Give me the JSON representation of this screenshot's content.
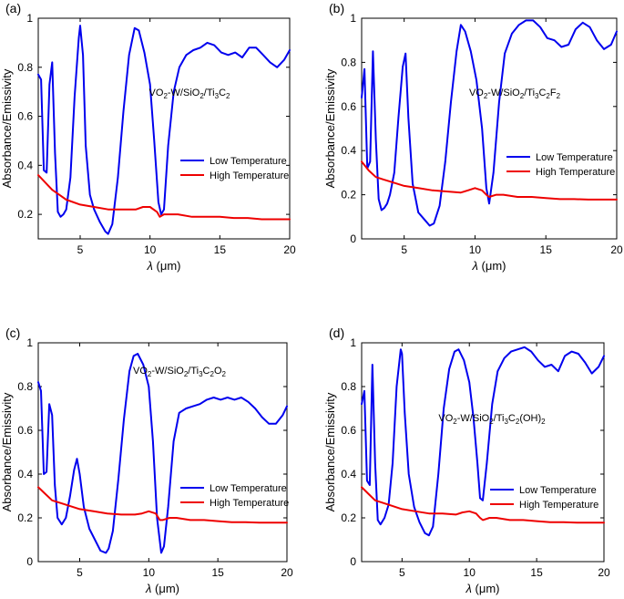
{
  "legend": {
    "low": "Low Temperature",
    "high": "High Temperature"
  },
  "colors": {
    "low": "#0000ee",
    "high": "#ee0000",
    "axis": "#000000"
  },
  "chart_data": [
    {
      "type": "line",
      "panel_label": "(a)",
      "annotation": {
        "prefix": "VO",
        "parts": [
          [
            "2",
            "sub"
          ],
          [
            "-W/SiO",
            "n"
          ],
          [
            "2",
            "sub"
          ],
          [
            "/Ti",
            "n"
          ],
          [
            "3",
            "sub"
          ],
          [
            "C",
            "n"
          ],
          [
            "2",
            "sub"
          ]
        ]
      },
      "xlabel_symbol": "λ",
      "xlabel_unit": "(μm)",
      "ylabel": "Absorbance/Emissivity",
      "xlim": [
        2,
        20
      ],
      "ylim": [
        0.1,
        1.0
      ],
      "xticks": [
        5,
        10,
        15,
        20
      ],
      "yticks": [
        0.2,
        0.4,
        0.6,
        0.8,
        1.0
      ],
      "ytick_labels": [
        "0.2",
        "0.4",
        "0.6",
        "0.8",
        "1"
      ],
      "legend_position": "center-right",
      "series": [
        {
          "name": "Low Temperature",
          "x": [
            2,
            2.2,
            2.4,
            2.6,
            2.8,
            3.0,
            3.2,
            3.4,
            3.6,
            3.8,
            4.0,
            4.3,
            4.6,
            4.9,
            5.0,
            5.2,
            5.4,
            5.7,
            6.0,
            6.4,
            6.8,
            7.0,
            7.3,
            7.7,
            8.1,
            8.5,
            8.9,
            9.2,
            9.6,
            10.0,
            10.3,
            10.6,
            10.8,
            11.0,
            11.3,
            11.7,
            12.1,
            12.6,
            13.1,
            13.6,
            14.1,
            14.6,
            15.1,
            15.6,
            16.1,
            16.6,
            17.1,
            17.6,
            18.1,
            18.6,
            19.1,
            19.6,
            20
          ],
          "y": [
            0.77,
            0.75,
            0.38,
            0.37,
            0.73,
            0.82,
            0.45,
            0.21,
            0.19,
            0.2,
            0.22,
            0.35,
            0.68,
            0.92,
            0.97,
            0.85,
            0.48,
            0.28,
            0.22,
            0.17,
            0.13,
            0.12,
            0.16,
            0.35,
            0.62,
            0.85,
            0.96,
            0.95,
            0.86,
            0.73,
            0.5,
            0.25,
            0.2,
            0.22,
            0.48,
            0.7,
            0.8,
            0.85,
            0.87,
            0.88,
            0.9,
            0.89,
            0.86,
            0.85,
            0.86,
            0.84,
            0.88,
            0.88,
            0.85,
            0.82,
            0.8,
            0.83,
            0.87
          ]
        },
        {
          "name": "High Temperature",
          "x": [
            2,
            2.5,
            3,
            3.5,
            4,
            5,
            6,
            7,
            8,
            9,
            9.5,
            10,
            10.5,
            10.7,
            11,
            11.5,
            12,
            13,
            14,
            15,
            16,
            17,
            18,
            19,
            20
          ],
          "y": [
            0.36,
            0.33,
            0.3,
            0.28,
            0.26,
            0.24,
            0.23,
            0.22,
            0.22,
            0.22,
            0.23,
            0.23,
            0.21,
            0.19,
            0.2,
            0.2,
            0.2,
            0.19,
            0.19,
            0.19,
            0.185,
            0.185,
            0.18,
            0.18,
            0.18
          ]
        }
      ]
    },
    {
      "type": "line",
      "panel_label": "(b)",
      "annotation": {
        "prefix": "VO",
        "parts": [
          [
            "2",
            "sub"
          ],
          [
            "-W/SiO",
            "n"
          ],
          [
            "2",
            "sub"
          ],
          [
            "/Ti",
            "n"
          ],
          [
            "3",
            "sub"
          ],
          [
            "C",
            "n"
          ],
          [
            "2",
            "sub"
          ],
          [
            "F",
            "n"
          ],
          [
            "2",
            "sub"
          ]
        ]
      },
      "xlabel_symbol": "λ",
      "xlabel_unit": "(μm)",
      "ylabel": "Absorbance/Emissivity",
      "xlim": [
        2,
        20
      ],
      "ylim": [
        0,
        1.0
      ],
      "xticks": [
        5,
        10,
        15,
        20
      ],
      "yticks": [
        0,
        0.2,
        0.4,
        0.6,
        0.8,
        1.0
      ],
      "ytick_labels": [
        "0",
        "0.2",
        "0.4",
        "0.6",
        "0.8",
        "1"
      ],
      "legend_position": "center-right",
      "series": [
        {
          "name": "Low Temperature",
          "x": [
            2,
            2.2,
            2.4,
            2.6,
            2.8,
            3.0,
            3.2,
            3.4,
            3.6,
            3.8,
            4.0,
            4.3,
            4.6,
            4.9,
            5.1,
            5.3,
            5.6,
            6.0,
            6.4,
            6.8,
            7.1,
            7.5,
            7.9,
            8.3,
            8.7,
            9.0,
            9.3,
            9.7,
            10.1,
            10.5,
            10.8,
            11.0,
            11.3,
            11.7,
            12.1,
            12.6,
            13.1,
            13.6,
            14.1,
            14.6,
            15.1,
            15.6,
            16.1,
            16.6,
            17.1,
            17.6,
            18.1,
            18.6,
            19.1,
            19.6,
            20
          ],
          "y": [
            0.64,
            0.77,
            0.32,
            0.35,
            0.85,
            0.45,
            0.18,
            0.13,
            0.14,
            0.16,
            0.2,
            0.3,
            0.55,
            0.78,
            0.84,
            0.55,
            0.25,
            0.12,
            0.09,
            0.06,
            0.07,
            0.15,
            0.35,
            0.62,
            0.85,
            0.97,
            0.94,
            0.85,
            0.72,
            0.5,
            0.23,
            0.16,
            0.3,
            0.62,
            0.84,
            0.93,
            0.97,
            0.99,
            0.99,
            0.96,
            0.91,
            0.9,
            0.87,
            0.88,
            0.95,
            0.98,
            0.96,
            0.9,
            0.86,
            0.88,
            0.94
          ]
        },
        {
          "name": "High Temperature",
          "x": [
            2,
            2.5,
            3,
            3.5,
            4,
            5,
            6,
            7,
            8,
            9,
            9.5,
            10,
            10.5,
            10.8,
            11,
            11.5,
            12,
            13,
            14,
            15,
            16,
            17,
            18,
            19,
            20
          ],
          "y": [
            0.35,
            0.31,
            0.28,
            0.27,
            0.26,
            0.24,
            0.23,
            0.22,
            0.215,
            0.21,
            0.22,
            0.23,
            0.22,
            0.2,
            0.19,
            0.2,
            0.2,
            0.19,
            0.19,
            0.185,
            0.18,
            0.18,
            0.178,
            0.178,
            0.178
          ]
        }
      ]
    },
    {
      "type": "line",
      "panel_label": "(c)",
      "annotation": {
        "prefix": "VO",
        "parts": [
          [
            "2",
            "sub"
          ],
          [
            "-W/SiO",
            "n"
          ],
          [
            "2",
            "sub"
          ],
          [
            "/Ti",
            "n"
          ],
          [
            "3",
            "sub"
          ],
          [
            "C",
            "n"
          ],
          [
            "2",
            "sub"
          ],
          [
            "O",
            "n"
          ],
          [
            "2",
            "sub"
          ]
        ]
      },
      "xlabel_symbol": "λ",
      "xlabel_unit": "(μm)",
      "ylabel": "Absorbance/Emissivity",
      "xlim": [
        2,
        20
      ],
      "ylim": [
        0,
        1.0
      ],
      "xticks": [
        5,
        10,
        15,
        20
      ],
      "yticks": [
        0,
        0.2,
        0.4,
        0.6,
        0.8,
        1.0
      ],
      "ytick_labels": [
        "0",
        "0.2",
        "0.4",
        "0.6",
        "0.8",
        "1"
      ],
      "legend_position": "center-right",
      "series": [
        {
          "name": "Low Temperature",
          "x": [
            2,
            2.2,
            2.4,
            2.6,
            2.8,
            3.0,
            3.2,
            3.4,
            3.7,
            4.0,
            4.3,
            4.6,
            4.8,
            5.0,
            5.3,
            5.7,
            6.1,
            6.5,
            6.9,
            7.1,
            7.4,
            7.8,
            8.2,
            8.6,
            8.9,
            9.2,
            9.6,
            10.0,
            10.3,
            10.6,
            10.9,
            11.1,
            11.4,
            11.8,
            12.2,
            12.7,
            13.2,
            13.7,
            14.2,
            14.7,
            15.2,
            15.7,
            16.2,
            16.7,
            17.2,
            17.7,
            18.2,
            18.7,
            19.2,
            19.7,
            20
          ],
          "y": [
            0.82,
            0.78,
            0.4,
            0.41,
            0.72,
            0.67,
            0.35,
            0.2,
            0.17,
            0.2,
            0.3,
            0.42,
            0.47,
            0.4,
            0.25,
            0.15,
            0.1,
            0.05,
            0.04,
            0.06,
            0.14,
            0.38,
            0.65,
            0.87,
            0.94,
            0.95,
            0.9,
            0.8,
            0.55,
            0.2,
            0.04,
            0.07,
            0.25,
            0.55,
            0.68,
            0.7,
            0.71,
            0.72,
            0.74,
            0.75,
            0.74,
            0.75,
            0.74,
            0.75,
            0.73,
            0.7,
            0.66,
            0.63,
            0.63,
            0.67,
            0.71
          ]
        },
        {
          "name": "High Temperature",
          "x": [
            2,
            2.5,
            3,
            3.5,
            4,
            5,
            6,
            7,
            8,
            9,
            9.5,
            10,
            10.5,
            10.8,
            11,
            11.5,
            12,
            13,
            14,
            15,
            16,
            17,
            18,
            19,
            20
          ],
          "y": [
            0.34,
            0.31,
            0.28,
            0.27,
            0.26,
            0.24,
            0.23,
            0.22,
            0.215,
            0.215,
            0.22,
            0.23,
            0.22,
            0.19,
            0.19,
            0.2,
            0.2,
            0.19,
            0.19,
            0.185,
            0.18,
            0.18,
            0.178,
            0.178,
            0.178
          ]
        }
      ]
    },
    {
      "type": "line",
      "panel_label": "(d)",
      "annotation": {
        "prefix": "VO",
        "parts": [
          [
            "2",
            "sub"
          ],
          [
            "-W/SiO",
            "n"
          ],
          [
            "2",
            "sub"
          ],
          [
            "/Ti",
            "n"
          ],
          [
            "3",
            "sub"
          ],
          [
            "C",
            "n"
          ],
          [
            "2",
            "sub"
          ],
          [
            "(OH)",
            "n"
          ],
          [
            "2",
            "sub"
          ]
        ]
      },
      "xlabel_symbol": "λ",
      "xlabel_unit": "(μm)",
      "ylabel": "Absorbance/Emissivity",
      "xlim": [
        2,
        20
      ],
      "ylim": [
        0,
        1.0
      ],
      "xticks": [
        5,
        10,
        15,
        20
      ],
      "yticks": [
        0,
        0.2,
        0.4,
        0.6,
        0.8,
        1.0
      ],
      "ytick_labels": [
        "0",
        "0.2",
        "0.4",
        "0.6",
        "0.8",
        "1"
      ],
      "legend_position": "center-right",
      "series": [
        {
          "name": "Low Temperature",
          "x": [
            2,
            2.2,
            2.4,
            2.6,
            2.8,
            3.0,
            3.2,
            3.4,
            3.7,
            4.0,
            4.3,
            4.6,
            4.9,
            5.0,
            5.2,
            5.5,
            5.9,
            6.3,
            6.7,
            7.0,
            7.3,
            7.7,
            8.1,
            8.5,
            8.9,
            9.2,
            9.6,
            10.0,
            10.3,
            10.6,
            10.8,
            11.0,
            11.3,
            11.7,
            12.1,
            12.6,
            13.1,
            13.6,
            14.1,
            14.6,
            15.1,
            15.6,
            16.1,
            16.6,
            17.1,
            17.6,
            18.1,
            18.6,
            19.1,
            19.6,
            20
          ],
          "y": [
            0.72,
            0.78,
            0.37,
            0.35,
            0.9,
            0.45,
            0.19,
            0.17,
            0.2,
            0.26,
            0.45,
            0.8,
            0.97,
            0.95,
            0.68,
            0.4,
            0.25,
            0.18,
            0.13,
            0.12,
            0.16,
            0.4,
            0.7,
            0.88,
            0.96,
            0.97,
            0.92,
            0.82,
            0.66,
            0.45,
            0.29,
            0.28,
            0.45,
            0.72,
            0.87,
            0.93,
            0.96,
            0.97,
            0.98,
            0.96,
            0.92,
            0.89,
            0.9,
            0.87,
            0.94,
            0.96,
            0.95,
            0.91,
            0.86,
            0.89,
            0.94
          ]
        },
        {
          "name": "High Temperature",
          "x": [
            2,
            2.5,
            3,
            3.5,
            4,
            5,
            6,
            7,
            8,
            9,
            9.5,
            10,
            10.5,
            10.8,
            11,
            11.5,
            12,
            13,
            14,
            15,
            16,
            17,
            18,
            19,
            20
          ],
          "y": [
            0.34,
            0.31,
            0.28,
            0.27,
            0.26,
            0.24,
            0.23,
            0.22,
            0.22,
            0.215,
            0.225,
            0.23,
            0.22,
            0.2,
            0.19,
            0.2,
            0.2,
            0.19,
            0.19,
            0.185,
            0.18,
            0.18,
            0.178,
            0.178,
            0.178
          ]
        }
      ]
    }
  ]
}
